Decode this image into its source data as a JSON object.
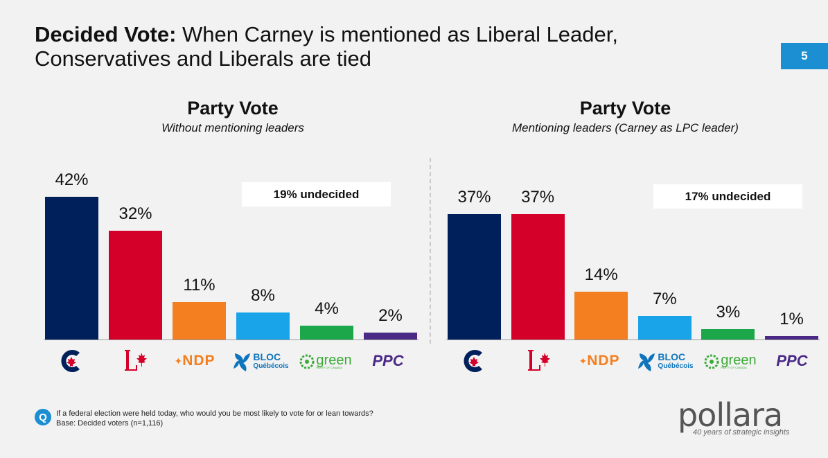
{
  "title": {
    "bold": "Decided Vote:",
    "rest": " When Carney is mentioned as Liberal Leader, Conservatives and Liberals are tied"
  },
  "page_number": "5",
  "footer": {
    "question": "If a federal election were held today, who would you be most likely to vote for or lean towards?",
    "base": "Base: Decided voters (n=1,116)",
    "q_icon": "Q"
  },
  "brand": {
    "name": "pollara",
    "tagline": "40 years of strategic insights"
  },
  "colors": {
    "CPC": "#00205b",
    "LPC": "#d5002a",
    "NDP": "#f37f20",
    "BQ": "#19a3e8",
    "GPC": "#1ca84a",
    "PPC": "#4b2a87",
    "accent": "#1b8fd2"
  },
  "chart_data": [
    {
      "type": "bar",
      "title": "Party Vote",
      "subtitle": "Without mentioning leaders",
      "categories": [
        "CPC",
        "LPC",
        "NDP",
        "BQ",
        "GPC",
        "PPC"
      ],
      "values": [
        42,
        32,
        11,
        8,
        4,
        2
      ],
      "value_labels": [
        "42%",
        "32%",
        "11%",
        "8%",
        "4%",
        "2%"
      ],
      "undecided": "19% undecided",
      "ylim": [
        0,
        42
      ]
    },
    {
      "type": "bar",
      "title": "Party Vote",
      "subtitle": "Mentioning leaders (Carney as LPC leader)",
      "categories": [
        "CPC",
        "LPC",
        "NDP",
        "BQ",
        "GPC",
        "PPC"
      ],
      "values": [
        37,
        37,
        14,
        7,
        3,
        1
      ],
      "value_labels": [
        "37%",
        "37%",
        "14%",
        "7%",
        "3%",
        "1%"
      ],
      "undecided": "17% undecided",
      "ylim": [
        0,
        42
      ]
    }
  ],
  "logos": {
    "ndp": "NDP",
    "bloc_top": "BLOC",
    "bloc_bottom": "Québécois",
    "green": "green",
    "green_sub": "PARTY OF CANADA",
    "ppc": "PPC"
  }
}
